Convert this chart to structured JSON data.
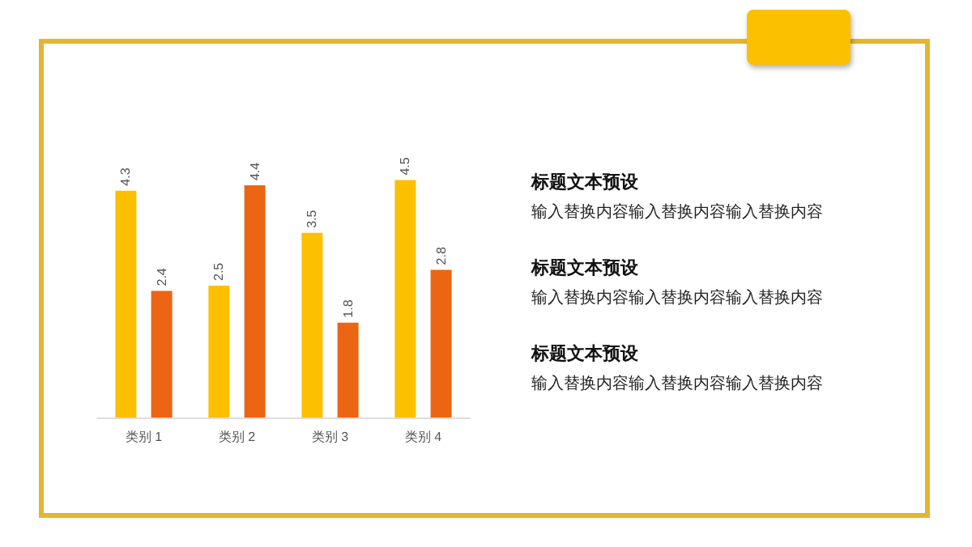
{
  "chart_data": {
    "type": "bar",
    "categories": [
      "类别 1",
      "类别 2",
      "类别 3",
      "类别 4"
    ],
    "series": [
      {
        "color": "#fcc000",
        "values": [
          4.3,
          2.5,
          3.5,
          4.5
        ]
      },
      {
        "color": "#ec6512",
        "values": [
          2.4,
          4.4,
          1.8,
          2.8
        ]
      }
    ],
    "data_labels": true,
    "annotations": [
      "标题文本预设",
      "输入替换内容输入替换内容输入替换内容",
      "标题文本预设",
      "输入替换内容输入替换内容输入替换内容",
      "标题文本预设",
      "输入替换内容输入替换内容输入替换内容"
    ]
  }
}
